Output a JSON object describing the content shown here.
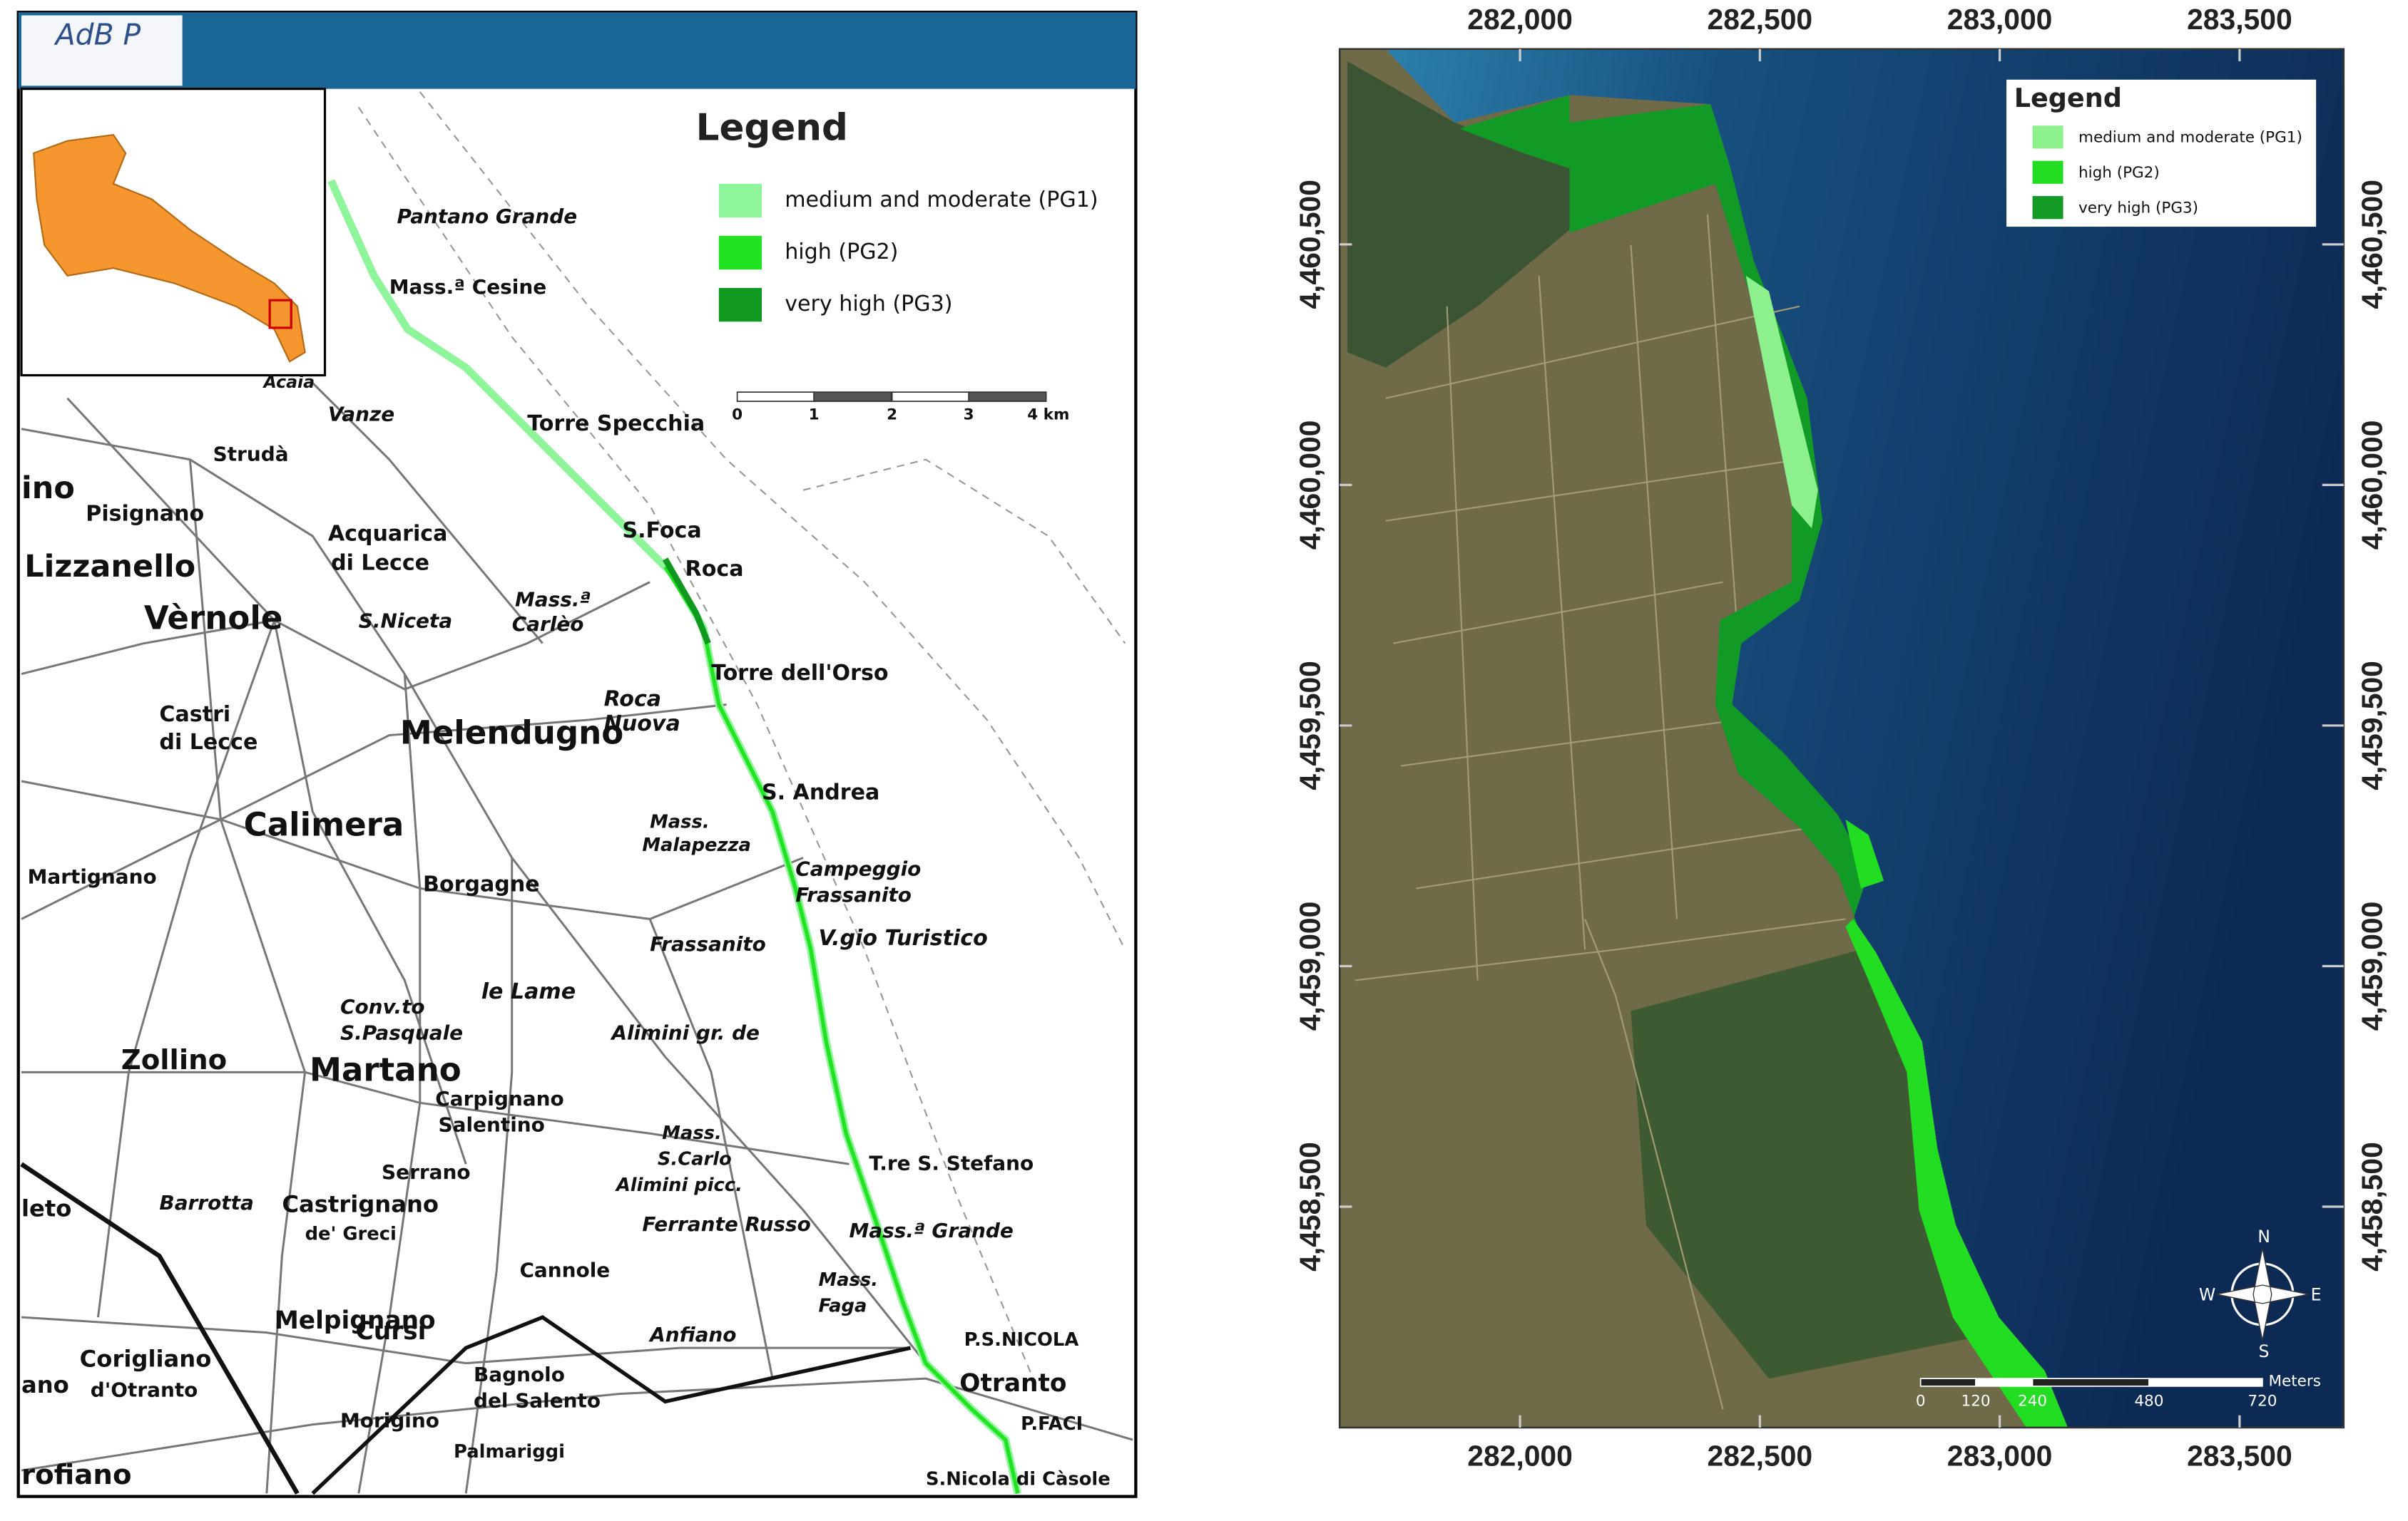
{
  "left_map": {
    "logo": "AdB P",
    "legend": {
      "title": "Legend",
      "items": [
        {
          "label": "medium and moderate (PG1)",
          "color": "#8ef59a"
        },
        {
          "label": "high (PG2)",
          "color": "#22e322"
        },
        {
          "label": "very high (PG3)",
          "color": "#0f9a1f"
        }
      ]
    },
    "scale_bar": {
      "labels": [
        "0",
        "1",
        "2",
        "3",
        "4 km"
      ]
    },
    "place_names": [
      "Pantano Grande",
      "Mass.ª Cesine",
      "Torre Specchia",
      "S.Foca",
      "Roca",
      "Torre dell'Orso",
      "S. Andrea",
      "Campeggio",
      "Frassanito",
      "V.gio Turistico",
      "Frassanito",
      "Alimini gr. de",
      "Mass.",
      "S.Carlo",
      "Alimini picc.",
      "Ferrante Russo",
      "T.re S. Stefano",
      "Mass.ª Grande",
      "Mass.",
      "Faga",
      "P.S.NICOLA",
      "Otranto",
      "P.FACI",
      "S.Nicola di Càsole",
      "Anfiano",
      "Cannole",
      "Bagnolo",
      "del Salento",
      "Palmariggi",
      "Cursi",
      "Melpignano",
      "Morigino",
      "Corigliano",
      "d'Otranto",
      "Castrignano",
      "de' Greci",
      "Serrano",
      "Carpignano",
      "Salentino",
      "Martano",
      "Zollino",
      "Barrotta",
      "Conv.to",
      "S.Pasquale",
      "le Lame",
      "Borgagne",
      "Mass.",
      "Malapezza",
      "Calimera",
      "Martignano",
      "Melendugno",
      "Roca",
      "Nuova",
      "Castri",
      "di Lecce",
      "Vèrnole",
      "S.Niceta",
      "Mass.ª",
      "Carlèo",
      "Acquarica",
      "di Lecce",
      "Lizzanello",
      "Pisignano",
      "Strudà",
      "Vanze",
      "Acaia",
      "rofiano",
      "leto",
      "ano",
      "ino"
    ]
  },
  "right_map": {
    "legend": {
      "title": "Legend",
      "items": [
        {
          "label": "medium and moderate (PG1)",
          "color": "#8cf08c"
        },
        {
          "label": "high (PG2)",
          "color": "#22dd22"
        },
        {
          "label": "very high (PG3)",
          "color": "#129a26"
        }
      ]
    },
    "scale_bar": {
      "labels": [
        "0",
        "120",
        "240",
        "480",
        "720"
      ],
      "unit": "Meters"
    },
    "compass": {
      "north": "N",
      "south": "S",
      "east": "E",
      "west": "W"
    },
    "x_axis": {
      "lim": [
        281624,
        283717
      ],
      "ticks": [
        {
          "value": 282000,
          "label": "282,000"
        },
        {
          "value": 282500,
          "label": "282,500"
        },
        {
          "value": 283000,
          "label": "283,000"
        },
        {
          "value": 283500,
          "label": "283,500"
        }
      ]
    },
    "y_axis": {
      "lim": [
        4458041,
        4460906
      ],
      "ticks": [
        {
          "value": 4460500,
          "label": "4,460,500"
        },
        {
          "value": 4460000,
          "label": "4,460,000"
        },
        {
          "value": 4459500,
          "label": "4,459,500"
        },
        {
          "value": 4459000,
          "label": "4,459,000"
        },
        {
          "value": 4458500,
          "label": "4,458,500"
        }
      ]
    }
  }
}
